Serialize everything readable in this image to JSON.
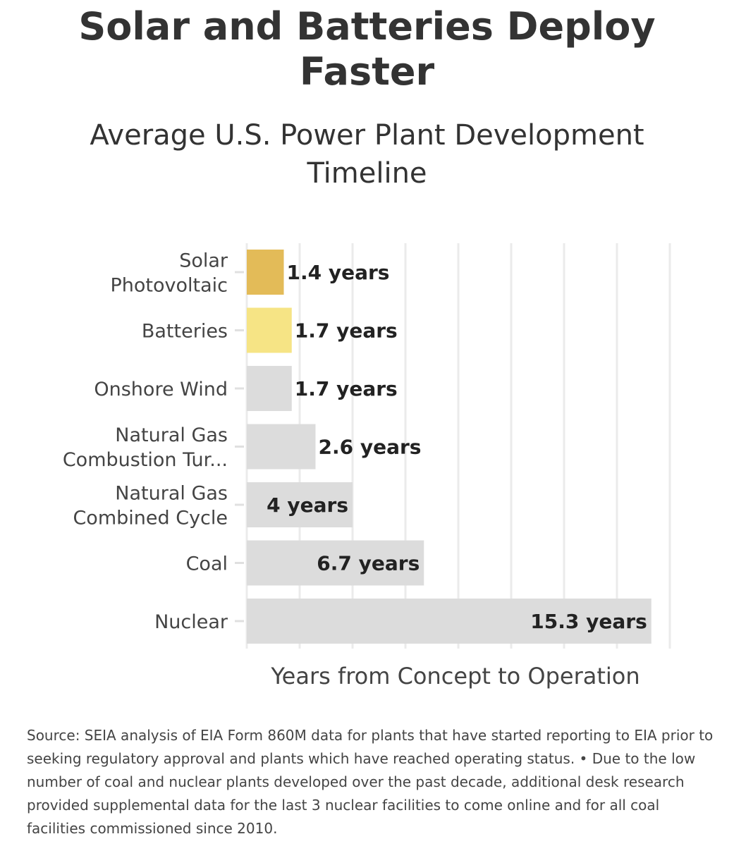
{
  "chart_data": {
    "type": "bar",
    "orientation": "horizontal",
    "title": "Solar and Batteries Deploy Faster",
    "subtitle": "Average U.S. Power Plant Development Timeline",
    "xlabel": "Years from Concept to Operation",
    "ylabel": "",
    "xlim": [
      0,
      16
    ],
    "grid": true,
    "value_suffix": " years",
    "categories": [
      [
        "Solar",
        "Photovoltaic"
      ],
      [
        "Batteries"
      ],
      [
        "Onshore Wind"
      ],
      [
        "Natural Gas",
        "Combustion Tur..."
      ],
      [
        "Natural Gas",
        "Combined Cycle"
      ],
      [
        "Coal"
      ],
      [
        "Nuclear"
      ]
    ],
    "values": [
      1.4,
      1.7,
      1.7,
      2.6,
      4,
      6.7,
      15.3
    ],
    "value_labels": [
      "1.4 years",
      "1.7 years",
      "1.7 years",
      "2.6 years",
      "4 years",
      "6.7 years",
      "15.3 years"
    ],
    "colors": [
      "#e3bb58",
      "#f6e485",
      "#dcdcdc",
      "#dcdcdc",
      "#dcdcdc",
      "#dcdcdc",
      "#dcdcdc"
    ],
    "label_placement": [
      "outside",
      "outside",
      "outside",
      "outside",
      "inside",
      "inside",
      "inside"
    ]
  },
  "source": "Source: SEIA analysis of EIA Form 860M data for plants that have started reporting to EIA prior to seeking regulatory approval and plants which have reached operating status. • Due to the low number of coal and nuclear plants developed over the past decade, additional desk research provided supplemental data for the last 3 nuclear facilities to come online and for all coal facilities commissioned since 2010."
}
